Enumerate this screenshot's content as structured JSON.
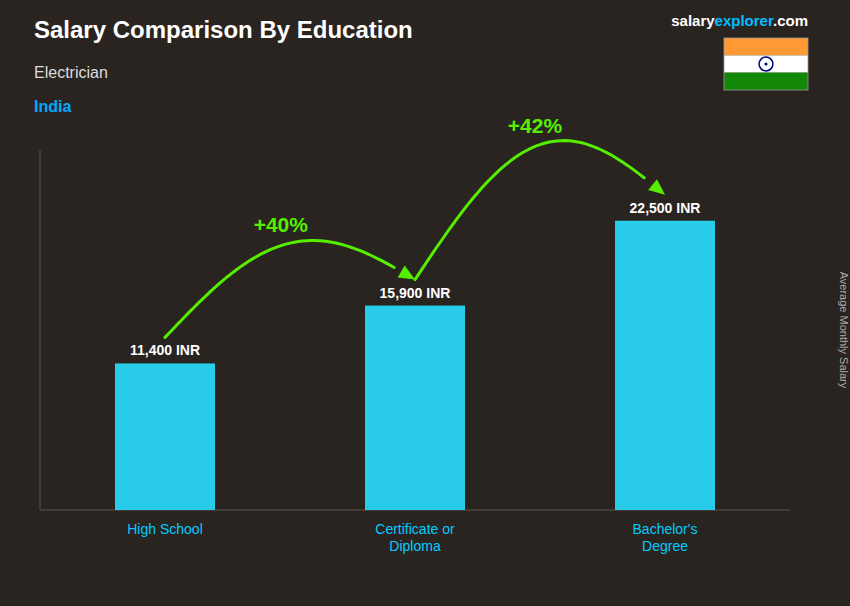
{
  "chart_data": {
    "type": "bar",
    "title": "Salary Comparison By Education",
    "subtitle": "Electrician",
    "ylabel": "Average Monthly Salary",
    "categories": [
      "High School",
      "Certificate or\nDiploma",
      "Bachelor's\nDegree"
    ],
    "values": [
      11400,
      15900,
      22500
    ],
    "value_labels": [
      "11,400 INR",
      "15,900 INR",
      "22,500 INR"
    ],
    "color": "#29cce8",
    "ylim": [
      0,
      28000
    ],
    "data_labels": true,
    "tick_labels": "x",
    "grid": false,
    "annotations": [
      {
        "text": "India",
        "color": "#00aaff"
      },
      {
        "text": "salary",
        "color": "#ffffff"
      },
      {
        "text": "explorer",
        "color": "#00bfff"
      },
      {
        "text": ".com",
        "color": "#ffffff"
      },
      {
        "text": "+40%",
        "color": "#55ee00"
      },
      {
        "text": "+42%",
        "color": "#55ee00"
      }
    ]
  }
}
